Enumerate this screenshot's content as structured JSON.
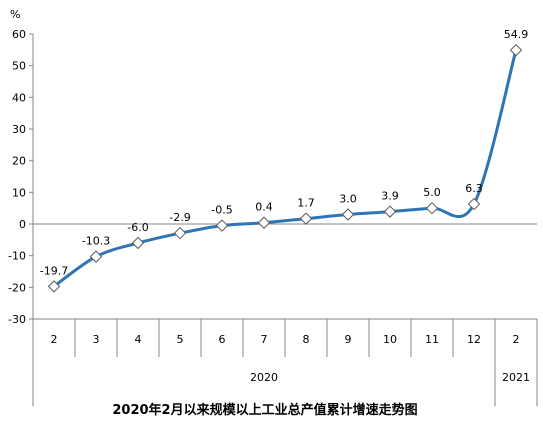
{
  "chart_data": {
    "type": "line",
    "title": "2020年2月以来规模以上工业总产值累计增速走势图",
    "y_unit": "%",
    "ylim": [
      -30,
      60
    ],
    "yticks": [
      -30,
      -20,
      -10,
      0,
      10,
      20,
      30,
      40,
      50,
      60
    ],
    "ytick_labels": [
      "-30",
      "-20",
      "-10",
      "0",
      "10",
      "20",
      "30",
      "40",
      "50",
      "60"
    ],
    "categories": [
      "2",
      "3",
      "4",
      "5",
      "6",
      "7",
      "8",
      "9",
      "10",
      "11",
      "12",
      "2"
    ],
    "groups": [
      {
        "label": "2020",
        "count": 11
      },
      {
        "label": "2021",
        "count": 1
      }
    ],
    "series": [
      {
        "values": [
          -19.7,
          -10.3,
          -6.0,
          -2.9,
          -0.5,
          0.4,
          1.7,
          3.0,
          3.9,
          5.0,
          6.3,
          54.9
        ],
        "labels": [
          "-19.7",
          "-10.3",
          "-6.0",
          "-2.9",
          "-0.5",
          "0.4",
          "1.7",
          "3.0",
          "3.9",
          "5.0",
          "6.3",
          "54.9"
        ],
        "color": "#2e75b6"
      }
    ],
    "grid": false,
    "legend": "none"
  }
}
